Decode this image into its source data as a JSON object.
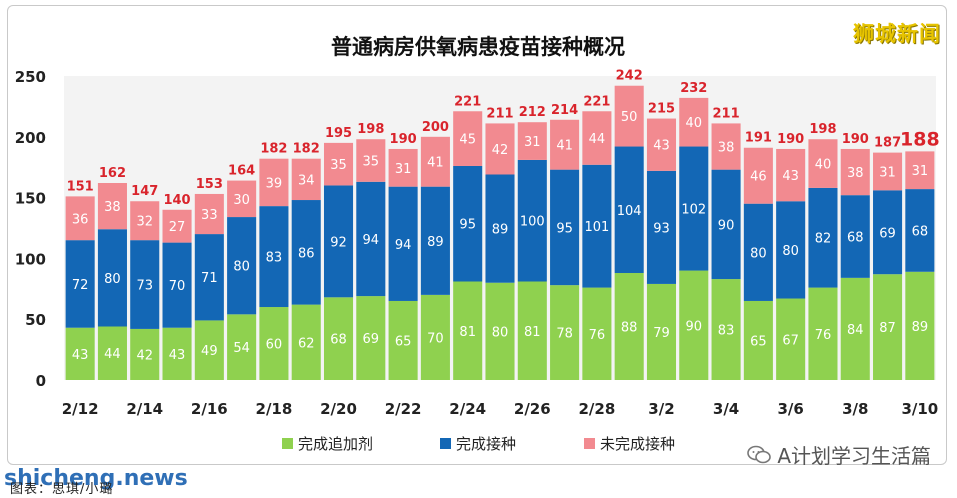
{
  "chart_data": {
    "type": "bar",
    "stacked": true,
    "title": "普通病房供氧病患疫苗接种概况",
    "categories": [
      "2/12",
      "2/13",
      "2/14",
      "2/15",
      "2/16",
      "2/17",
      "2/18",
      "2/19",
      "2/20",
      "2/21",
      "2/22",
      "2/23",
      "2/24",
      "2/25",
      "2/26",
      "2/27",
      "2/28",
      "3/1",
      "3/2",
      "3/3",
      "3/4",
      "3/5",
      "3/6",
      "3/7",
      "3/8",
      "3/9",
      "3/10"
    ],
    "xtick_labels": [
      "2/12",
      "2/14",
      "2/16",
      "2/18",
      "2/20",
      "2/22",
      "2/24",
      "2/26",
      "2/28",
      "3/2",
      "3/4",
      "3/6",
      "3/8",
      "3/10"
    ],
    "series": [
      {
        "name": "完成追加剂",
        "color": "#8fd14f",
        "values": [
          43,
          44,
          42,
          43,
          49,
          54,
          60,
          62,
          68,
          69,
          65,
          70,
          81,
          80,
          81,
          78,
          76,
          88,
          79,
          90,
          83,
          65,
          67,
          76,
          84,
          87,
          89
        ]
      },
      {
        "name": "完成接种",
        "color": "#1367b5",
        "values": [
          72,
          80,
          73,
          70,
          71,
          80,
          83,
          86,
          92,
          94,
          94,
          89,
          95,
          89,
          100,
          95,
          101,
          104,
          93,
          102,
          90,
          80,
          80,
          82,
          68,
          69,
          68
        ]
      },
      {
        "name": "未完成接种",
        "color": "#f28a90",
        "values": [
          36,
          38,
          32,
          27,
          33,
          30,
          39,
          34,
          35,
          35,
          31,
          41,
          45,
          42,
          31,
          41,
          44,
          50,
          43,
          40,
          38,
          46,
          43,
          40,
          38,
          31,
          31
        ]
      }
    ],
    "totals": [
      151,
      162,
      147,
      140,
      153,
      164,
      182,
      182,
      195,
      198,
      190,
      200,
      221,
      211,
      212,
      214,
      221,
      242,
      215,
      232,
      211,
      191,
      190,
      198,
      190,
      187,
      188
    ],
    "yticks": [
      0,
      50,
      100,
      150,
      200,
      250
    ],
    "ylim": [
      0,
      250
    ],
    "legend_position": "bottom",
    "grid": false
  },
  "brand": "狮城新闻",
  "watermark_left": "shicheng.news",
  "watermark_right": "A计划学习生活篇",
  "caption": "图表：思琪/小璐"
}
